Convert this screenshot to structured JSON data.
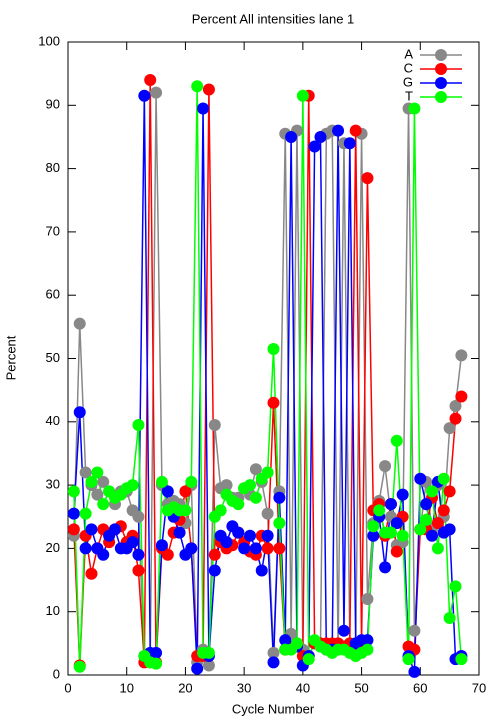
{
  "chart_data": {
    "type": "line",
    "title": "Percent All intensities lane 1",
    "x_label": "Cycle Number",
    "y_label": "Percent",
    "x": [
      1,
      2,
      3,
      4,
      5,
      6,
      7,
      8,
      9,
      10,
      11,
      12,
      13,
      14,
      15,
      16,
      17,
      18,
      19,
      20,
      21,
      22,
      23,
      24,
      25,
      26,
      27,
      28,
      29,
      30,
      31,
      32,
      33,
      34,
      35,
      36,
      37,
      38,
      39,
      40,
      41,
      42,
      43,
      44,
      45,
      46,
      47,
      48,
      49,
      50,
      51,
      52,
      53,
      54,
      55,
      56,
      57,
      58,
      59,
      60,
      61,
      62,
      63,
      64,
      65,
      66,
      67
    ],
    "series": [
      {
        "name": "A",
        "color": "#888888",
        "values": [
          22,
          55.5,
          32,
          30,
          28.5,
          30.5,
          29,
          27,
          29,
          29,
          26,
          25,
          3,
          2,
          92,
          30,
          27,
          27.5,
          27,
          24,
          30,
          2,
          4,
          1.5,
          39.5,
          29.5,
          30,
          28,
          28,
          29.5,
          28.5,
          32.5,
          30.5,
          25.5,
          3.5,
          29,
          85.5,
          6.5,
          86,
          4,
          3,
          5,
          4.5,
          85.5,
          86,
          4,
          84,
          4,
          3.5,
          85.5,
          12,
          24,
          27.5,
          33,
          25,
          20.5,
          21,
          89.5,
          7,
          23,
          30.5,
          23,
          30,
          25,
          39,
          42.5,
          50.5
        ]
      },
      {
        "name": "C",
        "color": "#ff0000",
        "values": [
          23,
          1.5,
          22,
          16,
          20,
          23,
          21,
          23,
          23.5,
          21,
          22,
          16.5,
          2,
          94,
          2,
          20,
          19,
          22.5,
          24.5,
          29,
          20,
          3,
          3,
          92.5,
          19,
          21,
          20,
          20.5,
          22.5,
          21,
          19.5,
          19,
          22,
          20,
          43,
          20,
          4,
          4.5,
          5,
          3,
          91.5,
          5,
          5,
          5,
          5,
          5,
          4.5,
          5,
          86,
          5,
          78.5,
          26,
          27,
          22,
          27,
          19.5,
          25,
          4.5,
          4,
          23,
          23,
          28,
          24,
          26,
          29,
          40.5,
          44
        ]
      },
      {
        "name": "G",
        "color": "#0000ff",
        "values": [
          25.5,
          41.5,
          20,
          23,
          20,
          19,
          22,
          23,
          20,
          20,
          21,
          19,
          91.5,
          3.5,
          3.5,
          20.5,
          29,
          25,
          22.5,
          19,
          20,
          1,
          89.5,
          3,
          16.5,
          22,
          21,
          23.5,
          22.5,
          20,
          22,
          20,
          16.5,
          22,
          2,
          28,
          5.5,
          85,
          4.5,
          1.5,
          3,
          83.5,
          85,
          4,
          4,
          86,
          7,
          84,
          5,
          5.5,
          5.5,
          22,
          25,
          17,
          27,
          24,
          28.5,
          3,
          0.5,
          31,
          27,
          22,
          30.5,
          22.5,
          23,
          2.5,
          3
        ]
      },
      {
        "name": "T",
        "color": "#00ff00",
        "values": [
          29,
          1.3,
          25.5,
          30.5,
          32,
          27,
          29,
          28,
          28.5,
          29.5,
          30,
          39.5,
          3,
          2,
          1.8,
          30.5,
          26,
          26.5,
          26,
          26,
          30.5,
          93,
          3.5,
          3.5,
          25,
          26,
          28.5,
          27.5,
          27,
          29.5,
          30,
          28,
          31,
          32,
          51.5,
          24,
          4,
          4,
          5,
          91.5,
          2.5,
          5.5,
          4.5,
          4,
          3.5,
          4,
          4,
          3.5,
          3,
          3.5,
          4,
          23.5,
          26,
          22.5,
          22.5,
          37,
          22,
          2.5,
          89.5,
          23,
          24.5,
          29,
          20,
          31,
          9,
          14,
          2.5
        ]
      }
    ],
    "xlim": [
      0,
      70
    ],
    "xticks": [
      0,
      10,
      20,
      30,
      40,
      50,
      60,
      70
    ],
    "ylim": [
      0,
      100
    ],
    "yticks": [
      0,
      10,
      20,
      30,
      40,
      50,
      60,
      70,
      80,
      90,
      100
    ],
    "legend": "top-right"
  }
}
